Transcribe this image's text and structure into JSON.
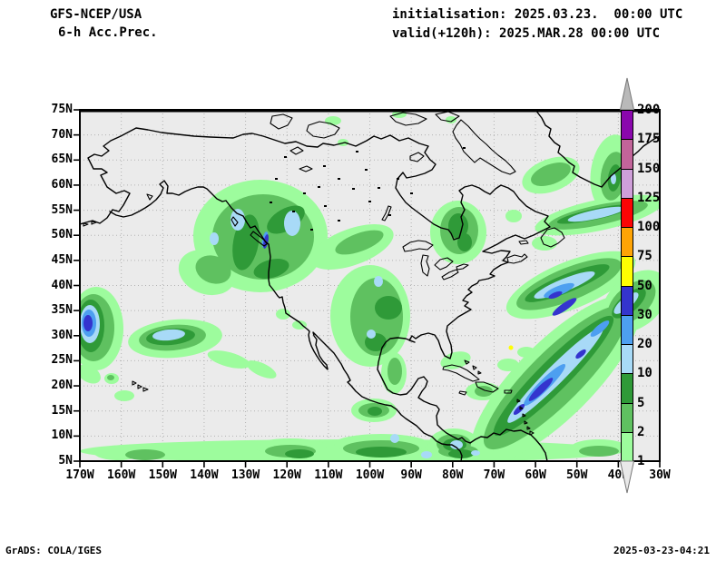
{
  "header": {
    "model": "GFS-NCEP/USA",
    "product": "6-h Acc.Prec.",
    "init_line": "initialisation: 2025.03.23.  00:00 UTC",
    "valid_line": "valid(+120h): 2025.MAR.28 00:00 UTC"
  },
  "map": {
    "lat_ticks": [
      "75N",
      "70N",
      "65N",
      "60N",
      "55N",
      "50N",
      "45N",
      "40N",
      "35N",
      "30N",
      "25N",
      "20N",
      "15N",
      "10N",
      "5N"
    ],
    "lon_ticks": [
      "170W",
      "160W",
      "150W",
      "140W",
      "130W",
      "120W",
      "110W",
      "100W",
      "90W",
      "80W",
      "70W",
      "60W",
      "50W",
      "40W",
      "30W"
    ],
    "background_color": "#ebebeb",
    "grid_color": "#b3b3b3",
    "coastline_color": "#000000"
  },
  "colorbar": {
    "levels": [
      "200",
      "175",
      "150",
      "125",
      "100",
      "75",
      "50",
      "30",
      "20",
      "10",
      "5",
      "2",
      "1"
    ],
    "cell_colors": [
      "#8a07ad",
      "#c2649a",
      "#cf9fd9",
      "#fb0505",
      "#ffa405",
      "#fefe02",
      "#3434ce",
      "#4d9ff0",
      "#a8daf7",
      "#2f9a38",
      "#5fc160",
      "#9dfc9d"
    ],
    "arrow_over_color": "#b9b9b9",
    "arrow_under_color": "#e9e9e9"
  },
  "precip_systems": [
    "British Columbia / Pacific Northwest coast system, cores 10-50",
    "NE Pacific low near 30N 150W with 10-20 core",
    "Mid-Pacific system at map west edge 30-40N, core 30-50",
    "Northern plains band 48-52N 110-125W, 2-5",
    "Central US / Texas-Gulf area, cores 5-20",
    "Quebec patch 50-55N 70-78W, cores 5-10",
    "Atlantic subtropical band 20N75W to 45N40W, cores 20-75",
    "Newfoundland / NW Atlantic bands, cores 10-50",
    "Davis Strait and East Greenland patches, 2-10",
    "Caribbean and Central America scatter, cores 5-20",
    "ITCZ band along 5-8N, cores 2-10"
  ],
  "footer": {
    "credit": "GrADS: COLA/IGES",
    "generated": "2025-03-23-04:21"
  }
}
